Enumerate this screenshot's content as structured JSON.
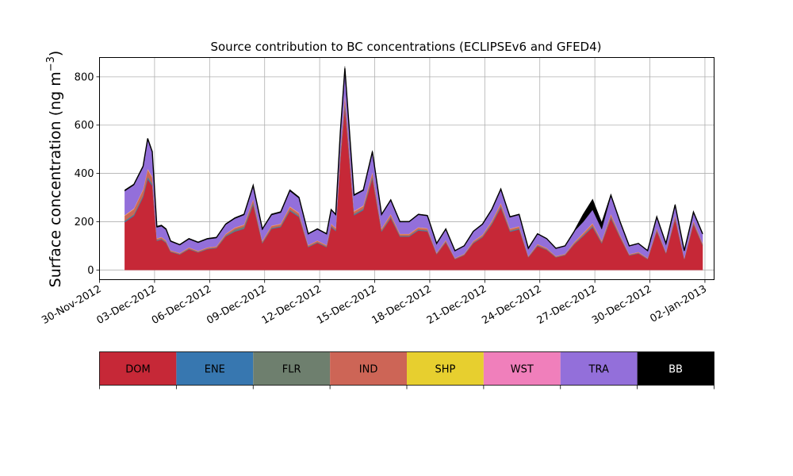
{
  "chart_data": {
    "type": "area",
    "stacked": true,
    "title": "Source contribution to BC concentrations (ECLIPSEv6 and GFED4)",
    "ylabel": "Surface concentration (ng m",
    "ylabel_unit_superscript": "−3",
    "ylabel_closing": ")",
    "xlabel": "",
    "x_axis": "date",
    "xlim": [
      "2012-11-30T00:00",
      "2013-01-02T12:00"
    ],
    "ylim": [
      -40,
      880
    ],
    "grid": true,
    "x_ticks": [
      "30-Nov-2012",
      "03-Dec-2012",
      "06-Dec-2012",
      "09-Dec-2012",
      "12-Dec-2012",
      "15-Dec-2012",
      "18-Dec-2012",
      "21-Dec-2012",
      "24-Dec-2012",
      "27-Dec-2012",
      "30-Dec-2012",
      "02-Jan-2013"
    ],
    "y_ticks": [
      0,
      200,
      400,
      600,
      800
    ],
    "x": [
      "2012-12-01T09:00",
      "2012-12-01T21:00",
      "2012-12-02T09:00",
      "2012-12-02T15:00",
      "2012-12-02T21:00",
      "2012-12-03T03:00",
      "2012-12-03T09:00",
      "2012-12-03T15:00",
      "2012-12-03T21:00",
      "2012-12-04T09:00",
      "2012-12-04T21:00",
      "2012-12-05T09:00",
      "2012-12-05T21:00",
      "2012-12-06T09:00",
      "2012-12-06T21:00",
      "2012-12-07T09:00",
      "2012-12-07T21:00",
      "2012-12-08T09:00",
      "2012-12-08T21:00",
      "2012-12-09T09:00",
      "2012-12-09T21:00",
      "2012-12-10T09:00",
      "2012-12-10T21:00",
      "2012-12-11T09:00",
      "2012-12-11T21:00",
      "2012-12-12T09:00",
      "2012-12-12T15:00",
      "2012-12-12T21:00",
      "2012-12-13T03:00",
      "2012-12-13T09:00",
      "2012-12-13T21:00",
      "2012-12-14T09:00",
      "2012-12-14T21:00",
      "2012-12-15T09:00",
      "2012-12-15T21:00",
      "2012-12-16T09:00",
      "2012-12-16T21:00",
      "2012-12-17T09:00",
      "2012-12-17T21:00",
      "2012-12-18T09:00",
      "2012-12-18T21:00",
      "2012-12-19T09:00",
      "2012-12-19T21:00",
      "2012-12-20T09:00",
      "2012-12-20T21:00",
      "2012-12-21T09:00",
      "2012-12-21T21:00",
      "2012-12-22T09:00",
      "2012-12-22T21:00",
      "2012-12-23T09:00",
      "2012-12-23T21:00",
      "2012-12-24T09:00",
      "2012-12-24T21:00",
      "2012-12-25T09:00",
      "2012-12-25T21:00",
      "2012-12-26T09:00",
      "2012-12-26T21:00",
      "2012-12-27T09:00",
      "2012-12-27T21:00",
      "2012-12-28T09:00",
      "2012-12-28T21:00",
      "2012-12-29T09:00",
      "2012-12-29T21:00",
      "2012-12-30T09:00",
      "2012-12-30T21:00",
      "2012-12-31T09:00",
      "2012-12-31T21:00",
      "2013-01-01T09:00",
      "2013-01-01T21:00"
    ],
    "total": [
      330,
      355,
      430,
      545,
      490,
      180,
      185,
      170,
      120,
      105,
      130,
      115,
      130,
      135,
      190,
      215,
      230,
      350,
      170,
      230,
      240,
      330,
      300,
      150,
      170,
      150,
      250,
      230,
      570,
      835,
      310,
      330,
      490,
      230,
      290,
      200,
      200,
      230,
      225,
      110,
      170,
      80,
      100,
      160,
      190,
      250,
      335,
      220,
      230,
      90,
      150,
      130,
      90,
      100,
      160,
      230,
      290,
      190,
      310,
      200,
      100,
      110,
      80,
      220,
      110,
      270,
      80,
      240,
      150
    ],
    "legend": {
      "labels": [
        "DOM",
        "ENE",
        "FLR",
        "IND",
        "SHP",
        "WST",
        "TRA",
        "BB"
      ],
      "colors": [
        "#c62837",
        "#3777b0",
        "#6e7f6e",
        "#cd6556",
        "#e7cf2f",
        "#f07fbb",
        "#936fda",
        "#000000"
      ],
      "label_colors": [
        "#000000",
        "#000000",
        "#000000",
        "#000000",
        "#000000",
        "#000000",
        "#000000",
        "#ffffff"
      ]
    },
    "series": [
      {
        "key": "DOM",
        "fraction": [
          0.6,
          0.63,
          0.7,
          0.69,
          0.71,
          0.67,
          0.68,
          0.66,
          0.62,
          0.61,
          0.66,
          0.63,
          0.66,
          0.67,
          0.73,
          0.74,
          0.74,
          0.77,
          0.65,
          0.74,
          0.74,
          0.74,
          0.73,
          0.63,
          0.66,
          0.63,
          0.71,
          0.7,
          0.8,
          0.81,
          0.73,
          0.75,
          0.77,
          0.69,
          0.74,
          0.69,
          0.69,
          0.71,
          0.71,
          0.59,
          0.67,
          0.56,
          0.61,
          0.69,
          0.71,
          0.75,
          0.77,
          0.72,
          0.73,
          0.58,
          0.66,
          0.64,
          0.58,
          0.61,
          0.66,
          0.61,
          0.61,
          0.58,
          0.69,
          0.67,
          0.6,
          0.62,
          0.56,
          0.73,
          0.62,
          0.78,
          0.56,
          0.79,
          0.68
        ]
      },
      {
        "key": "ENE",
        "fraction": [
          0.01,
          0.01,
          0.01,
          0.01,
          0.01,
          0.01,
          0.01,
          0.01,
          0.01,
          0.01,
          0.01,
          0.01,
          0.01,
          0.01,
          0.01,
          0.01,
          0.01,
          0.01,
          0.01,
          0.01,
          0.01,
          0.01,
          0.01,
          0.01,
          0.01,
          0.01,
          0.01,
          0.01,
          0.01,
          0.01,
          0.01,
          0.01,
          0.01,
          0.01,
          0.01,
          0.01,
          0.01,
          0.01,
          0.01,
          0.01,
          0.01,
          0.01,
          0.01,
          0.01,
          0.01,
          0.01,
          0.01,
          0.01,
          0.01,
          0.01,
          0.01,
          0.01,
          0.01,
          0.01,
          0.01,
          0.01,
          0.01,
          0.01,
          0.01,
          0.01,
          0.01,
          0.01,
          0.01,
          0.01,
          0.01,
          0.01,
          0.01,
          0.01,
          0.01
        ]
      },
      {
        "key": "FLR",
        "fraction": [
          0.01,
          0.01,
          0.01,
          0.01,
          0.01,
          0.01,
          0.01,
          0.01,
          0.01,
          0.01,
          0.01,
          0.01,
          0.01,
          0.01,
          0.01,
          0.03,
          0.03,
          0.02,
          0.01,
          0.01,
          0.01,
          0.01,
          0.01,
          0.01,
          0.01,
          0.01,
          0.01,
          0.01,
          0.01,
          0.01,
          0.01,
          0.01,
          0.01,
          0.01,
          0.01,
          0.01,
          0.01,
          0.01,
          0.01,
          0.01,
          0.01,
          0.01,
          0.01,
          0.01,
          0.01,
          0.01,
          0.01,
          0.01,
          0.01,
          0.01,
          0.01,
          0.01,
          0.01,
          0.01,
          0.01,
          0.01,
          0.01,
          0.01,
          0.01,
          0.01,
          0.01,
          0.01,
          0.01,
          0.01,
          0.01,
          0.01,
          0.01,
          0.01,
          0.01
        ]
      },
      {
        "key": "IND",
        "fraction": [
          0.06,
          0.06,
          0.05,
          0.05,
          0.05,
          0.03,
          0.03,
          0.03,
          0.03,
          0.03,
          0.03,
          0.03,
          0.03,
          0.03,
          0.03,
          0.03,
          0.03,
          0.03,
          0.03,
          0.03,
          0.03,
          0.03,
          0.03,
          0.03,
          0.03,
          0.03,
          0.03,
          0.03,
          0.03,
          0.03,
          0.03,
          0.03,
          0.03,
          0.03,
          0.03,
          0.03,
          0.03,
          0.03,
          0.03,
          0.03,
          0.03,
          0.03,
          0.03,
          0.03,
          0.03,
          0.03,
          0.03,
          0.03,
          0.03,
          0.03,
          0.03,
          0.03,
          0.03,
          0.03,
          0.03,
          0.03,
          0.03,
          0.03,
          0.03,
          0.03,
          0.03,
          0.03,
          0.03,
          0.03,
          0.03,
          0.03,
          0.03,
          0.03,
          0.03
        ]
      },
      {
        "key": "SHP",
        "fraction": [
          0.005,
          0.005,
          0.005,
          0.005,
          0.005,
          0.005,
          0.005,
          0.005,
          0.005,
          0.005,
          0.005,
          0.005,
          0.005,
          0.005,
          0.005,
          0.005,
          0.005,
          0.005,
          0.005,
          0.005,
          0.005,
          0.005,
          0.005,
          0.005,
          0.005,
          0.005,
          0.005,
          0.005,
          0.005,
          0.005,
          0.005,
          0.005,
          0.005,
          0.005,
          0.005,
          0.005,
          0.005,
          0.005,
          0.005,
          0.005,
          0.005,
          0.005,
          0.005,
          0.005,
          0.005,
          0.005,
          0.005,
          0.005,
          0.005,
          0.005,
          0.005,
          0.005,
          0.005,
          0.005,
          0.005,
          0.005,
          0.005,
          0.005,
          0.005,
          0.005,
          0.005,
          0.005,
          0.005,
          0.005,
          0.005,
          0.005,
          0.005,
          0.005,
          0.005
        ]
      },
      {
        "key": "WST",
        "fraction": [
          0.005,
          0.005,
          0.005,
          0.005,
          0.005,
          0.005,
          0.005,
          0.005,
          0.005,
          0.005,
          0.005,
          0.005,
          0.005,
          0.005,
          0.005,
          0.005,
          0.005,
          0.005,
          0.005,
          0.005,
          0.005,
          0.005,
          0.005,
          0.005,
          0.005,
          0.005,
          0.005,
          0.005,
          0.005,
          0.005,
          0.005,
          0.005,
          0.005,
          0.005,
          0.005,
          0.005,
          0.005,
          0.005,
          0.005,
          0.005,
          0.005,
          0.005,
          0.005,
          0.005,
          0.005,
          0.005,
          0.005,
          0.005,
          0.005,
          0.005,
          0.005,
          0.005,
          0.005,
          0.005,
          0.005,
          0.005,
          0.005,
          0.005,
          0.005,
          0.005,
          0.005,
          0.005,
          0.005,
          0.005,
          0.005,
          0.005,
          0.005,
          0.005,
          0.005
        ]
      },
      {
        "key": "TRA",
        "fraction": [
          0.3,
          0.27,
          0.21,
          0.22,
          0.2,
          0.25,
          0.24,
          0.26,
          0.3,
          0.31,
          0.26,
          0.29,
          0.26,
          0.25,
          0.2,
          0.17,
          0.17,
          0.15,
          0.27,
          0.19,
          0.19,
          0.19,
          0.2,
          0.3,
          0.27,
          0.3,
          0.22,
          0.23,
          0.14,
          0.13,
          0.21,
          0.19,
          0.17,
          0.25,
          0.2,
          0.25,
          0.25,
          0.23,
          0.23,
          0.35,
          0.27,
          0.38,
          0.33,
          0.25,
          0.23,
          0.19,
          0.17,
          0.22,
          0.21,
          0.36,
          0.28,
          0.3,
          0.36,
          0.33,
          0.28,
          0.2,
          0.19,
          0.25,
          0.24,
          0.26,
          0.33,
          0.31,
          0.37,
          0.2,
          0.31,
          0.15,
          0.37,
          0.14,
          0.25
        ]
      },
      {
        "key": "BB",
        "fraction": [
          0.01,
          0.01,
          0.01,
          0.01,
          0.01,
          0.02,
          0.02,
          0.02,
          0.02,
          0.02,
          0.02,
          0.02,
          0.02,
          0.02,
          0.02,
          0.02,
          0.02,
          0.02,
          0.02,
          0.02,
          0.02,
          0.02,
          0.02,
          0.02,
          0.02,
          0.02,
          0.02,
          0.02,
          0.01,
          0.01,
          0.01,
          0.01,
          0.01,
          0.01,
          0.01,
          0.01,
          0.01,
          0.01,
          0.01,
          0.01,
          0.01,
          0.01,
          0.01,
          0.01,
          0.01,
          0.01,
          0.01,
          0.01,
          0.01,
          0.01,
          0.01,
          0.01,
          0.01,
          0.01,
          0.01,
          0.13,
          0.14,
          0.15,
          0.02,
          0.02,
          0.02,
          0.02,
          0.02,
          0.02,
          0.02,
          0.02,
          0.02,
          0.02,
          0.02
        ]
      }
    ]
  }
}
